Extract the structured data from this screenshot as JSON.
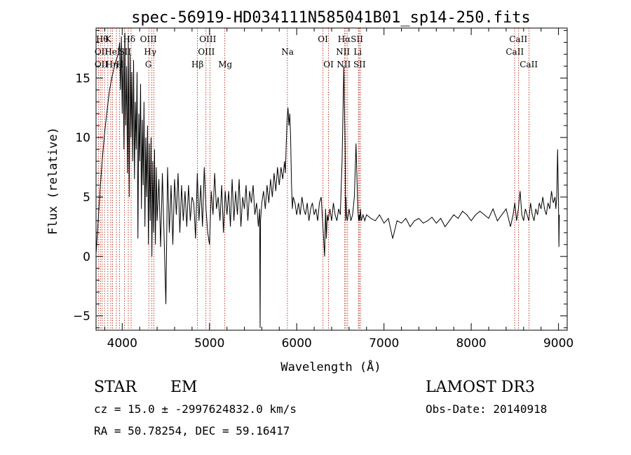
{
  "chart_data": {
    "type": "line",
    "title": "spec-56919-HD034111N585041B01_sp14-250.fits",
    "xlabel": "Wavelength (Å)",
    "ylabel": "Flux (relative)",
    "xlim": [
      3700,
      9100
    ],
    "ylim": [
      -6.2,
      19.2
    ],
    "xticks": [
      4000,
      5000,
      6000,
      7000,
      8000,
      9000
    ],
    "yticks": [
      -5,
      0,
      5,
      10,
      15
    ],
    "grid": false,
    "series": [
      {
        "x": [
          3700,
          3720,
          3745,
          3770,
          3800,
          3830,
          3855,
          3880,
          3905,
          3930,
          3955,
          3970,
          3980,
          3990,
          4000,
          4010,
          4020,
          4030,
          4040,
          4050,
          4060,
          4070,
          4080,
          4090,
          4100,
          4110,
          4120,
          4130,
          4140,
          4150,
          4160,
          4170,
          4180,
          4190,
          4200,
          4210,
          4220,
          4230,
          4240,
          4250,
          4260,
          4270,
          4280,
          4290,
          4300,
          4310,
          4320,
          4330,
          4340,
          4350,
          4360,
          4370,
          4380,
          4390,
          4400,
          4420,
          4440,
          4460,
          4480,
          4500,
          4520,
          4540,
          4560,
          4580,
          4600,
          4620,
          4640,
          4660,
          4680,
          4700,
          4720,
          4740,
          4760,
          4780,
          4800,
          4820,
          4840,
          4860,
          4880,
          4900,
          4920,
          4940,
          4960,
          4980,
          5000,
          5020,
          5040,
          5060,
          5080,
          5100,
          5120,
          5140,
          5160,
          5180,
          5200,
          5220,
          5240,
          5260,
          5280,
          5300,
          5320,
          5340,
          5360,
          5380,
          5400,
          5420,
          5440,
          5460,
          5480,
          5500,
          5520,
          5540,
          5560,
          5575,
          5580,
          5585,
          5600,
          5620,
          5640,
          5660,
          5680,
          5700,
          5720,
          5740,
          5760,
          5780,
          5800,
          5820,
          5840,
          5860,
          5870,
          5880,
          5890,
          5900,
          5910,
          5920,
          5930,
          5940,
          5950,
          5960,
          5980,
          6000,
          6020,
          6040,
          6060,
          6080,
          6100,
          6120,
          6140,
          6160,
          6180,
          6200,
          6220,
          6240,
          6260,
          6280,
          6300,
          6320,
          6330,
          6340,
          6350,
          6360,
          6380,
          6400,
          6420,
          6440,
          6460,
          6480,
          6500,
          6520,
          6540,
          6555,
          6560,
          6565,
          6570,
          6580,
          6600,
          6620,
          6640,
          6660,
          6680,
          6700,
          6710,
          6716,
          6722,
          6730,
          6740,
          6760,
          6780,
          6800,
          6850,
          6900,
          6950,
          7000,
          7050,
          7100,
          7150,
          7200,
          7250,
          7300,
          7350,
          7400,
          7450,
          7500,
          7550,
          7600,
          7650,
          7700,
          7750,
          7800,
          7850,
          7900,
          7950,
          8000,
          8050,
          8100,
          8150,
          8200,
          8250,
          8300,
          8350,
          8400,
          8450,
          8480,
          8500,
          8520,
          8540,
          8560,
          8580,
          8600,
          8620,
          8640,
          8660,
          8680,
          8700,
          8720,
          8740,
          8760,
          8780,
          8800,
          8820,
          8840,
          8860,
          8880,
          8900,
          8920,
          8940,
          8960,
          8970,
          8980,
          8990,
          9000,
          9005,
          9010
        ],
        "y": [
          0.2,
          2.5,
          5.5,
          8.0,
          10.5,
          12.5,
          14.0,
          15.0,
          15.8,
          16.5,
          17.0,
          18.0,
          14.0,
          18.5,
          12.0,
          17.5,
          9.0,
          18.8,
          11.0,
          16.0,
          7.0,
          18.5,
          5.0,
          17.0,
          10.0,
          15.5,
          8.0,
          16.5,
          6.5,
          13.0,
          9.0,
          15.5,
          1.5,
          12.0,
          8.0,
          14.5,
          4.0,
          11.5,
          6.0,
          13.0,
          2.5,
          10.0,
          5.0,
          11.0,
          1.0,
          9.5,
          3.0,
          10.0,
          0.0,
          8.0,
          2.0,
          9.0,
          1.0,
          7.5,
          3.0,
          6.5,
          0.8,
          7.0,
          1.5,
          -4.0,
          7.5,
          2.0,
          6.0,
          1.0,
          6.5,
          3.5,
          7.0,
          2.0,
          6.0,
          3.0,
          5.5,
          2.5,
          6.0,
          3.0,
          5.0,
          4.5,
          1.5,
          7.0,
          3.0,
          6.0,
          2.5,
          7.5,
          4.0,
          2.0,
          1.0,
          5.5,
          3.5,
          7.0,
          4.0,
          5.0,
          3.0,
          6.0,
          2.0,
          5.5,
          3.5,
          5.5,
          2.5,
          6.5,
          3.0,
          5.5,
          3.5,
          6.5,
          2.5,
          5.0,
          4.0,
          6.0,
          3.0,
          5.5,
          4.5,
          6.0,
          3.5,
          4.5,
          2.5,
          4.0,
          -6.0,
          3.0,
          4.5,
          5.5,
          4.0,
          6.0,
          4.5,
          6.5,
          5.0,
          7.0,
          5.5,
          7.5,
          6.0,
          7.5,
          6.5,
          8.0,
          7.0,
          9.5,
          11.5,
          12.5,
          11.0,
          12.0,
          10.0,
          6.0,
          4.0,
          5.0,
          4.5,
          3.5,
          4.5,
          3.5,
          5.0,
          4.0,
          3.5,
          4.5,
          3.0,
          4.0,
          4.5,
          3.5,
          4.0,
          3.0,
          4.5,
          5.0,
          2.5,
          0.0,
          4.0,
          1.5,
          3.5,
          3.0,
          4.0,
          3.0,
          4.5,
          3.5,
          3.0,
          4.0,
          3.5,
          8.0,
          16.0,
          9.0,
          3.0,
          5.0,
          3.5,
          3.0,
          4.0,
          3.0,
          3.5,
          5.0,
          9.5,
          4.0,
          3.0,
          3.5,
          3.0,
          4.0,
          3.0,
          3.5,
          3.0,
          3.5,
          3.2,
          3.0,
          3.5,
          2.8,
          3.2,
          1.5,
          3.0,
          2.8,
          3.2,
          2.5,
          3.0,
          3.2,
          2.8,
          3.0,
          3.3,
          2.8,
          3.2,
          2.5,
          3.0,
          3.5,
          3.2,
          3.8,
          3.5,
          3.0,
          3.5,
          3.8,
          3.5,
          3.2,
          4.0,
          3.0,
          3.5,
          4.0,
          2.5,
          3.5,
          4.5,
          3.0,
          4.0,
          5.5,
          3.5,
          3.0,
          4.0,
          3.5,
          3.0,
          4.5,
          3.5,
          3.0,
          4.0,
          3.5,
          4.5,
          4.0,
          5.0,
          4.0,
          3.5,
          4.5,
          4.0,
          5.5,
          4.5,
          5.0,
          4.0,
          5.0,
          9.0,
          4.5,
          0.8,
          3.5
        ]
      }
    ],
    "line_markers": [
      {
        "wl": 3727,
        "label": "OII"
      },
      {
        "wl": 3750,
        "label": "OII"
      },
      {
        "wl": 3770,
        "label": "Hθ"
      },
      {
        "wl": 3798,
        "label": "Hη"
      },
      {
        "wl": 3835,
        "label": "K"
      },
      {
        "wl": 3869,
        "label": "Hη"
      },
      {
        "wl": 3889,
        "label": "HeI"
      },
      {
        "wl": 3934,
        "label": "K"
      },
      {
        "wl": 3968,
        "label": "H"
      },
      {
        "wl": 4026,
        "label": "SII"
      },
      {
        "wl": 4070,
        "label": "Hδ"
      },
      {
        "wl": 4102,
        "label": "Hδ"
      },
      {
        "wl": 4305,
        "label": "G"
      },
      {
        "wl": 4340,
        "label": "Hγ"
      },
      {
        "wl": 4363,
        "label": "OIII"
      },
      {
        "wl": 4861,
        "label": "Hβ"
      },
      {
        "wl": 4959,
        "label": "OIII"
      },
      {
        "wl": 5007,
        "label": "OIII"
      },
      {
        "wl": 5175,
        "label": "Mg"
      },
      {
        "wl": 5893,
        "label": "Na"
      },
      {
        "wl": 6300,
        "label": "OI"
      },
      {
        "wl": 6364,
        "label": "OI"
      },
      {
        "wl": 6548,
        "label": "NII"
      },
      {
        "wl": 6563,
        "label": "Hα"
      },
      {
        "wl": 6583,
        "label": "NII"
      },
      {
        "wl": 6708,
        "label": "Li"
      },
      {
        "wl": 6716,
        "label": "SII"
      },
      {
        "wl": 6731,
        "label": "SII"
      },
      {
        "wl": 8498,
        "label": "CaII"
      },
      {
        "wl": 8542,
        "label": "CaII"
      },
      {
        "wl": 8662,
        "label": "CaII"
      }
    ],
    "line_labels": [
      {
        "text": "Hθ",
        "wl": 3770,
        "row": 0
      },
      {
        "text": "K",
        "wl": 3838,
        "row": 0
      },
      {
        "text": "Hδ",
        "wl": 4080,
        "row": 0
      },
      {
        "text": "OIII",
        "wl": 4300,
        "row": 0
      },
      {
        "text": "OIII",
        "wl": 4980,
        "row": 0
      },
      {
        "text": "OI",
        "wl": 6300,
        "row": 0
      },
      {
        "text": "Hα",
        "wl": 6545,
        "row": 0
      },
      {
        "text": "SII",
        "wl": 6690,
        "row": 0
      },
      {
        "text": "CaII",
        "wl": 8540,
        "row": 0
      },
      {
        "text": "OII",
        "wl": 3760,
        "row": 1
      },
      {
        "text": "HeI",
        "wl": 3888,
        "row": 1
      },
      {
        "text": "SII",
        "wl": 4032,
        "row": 1
      },
      {
        "text": "Hγ",
        "wl": 4320,
        "row": 1
      },
      {
        "text": "OIII",
        "wl": 4965,
        "row": 1
      },
      {
        "text": "Na",
        "wl": 5895,
        "row": 1
      },
      {
        "text": "NII",
        "wl": 6530,
        "row": 1
      },
      {
        "text": "Li",
        "wl": 6700,
        "row": 1
      },
      {
        "text": "CaII",
        "wl": 8500,
        "row": 1
      },
      {
        "text": "OII",
        "wl": 3760,
        "row": 2
      },
      {
        "text": "Hη",
        "wl": 3880,
        "row": 2
      },
      {
        "text": "H",
        "wl": 3972,
        "row": 2
      },
      {
        "text": "G",
        "wl": 4300,
        "row": 2
      },
      {
        "text": "Hβ",
        "wl": 4863,
        "row": 2
      },
      {
        "text": "Mg",
        "wl": 5180,
        "row": 2
      },
      {
        "text": "OI",
        "wl": 6365,
        "row": 2
      },
      {
        "text": "NII",
        "wl": 6540,
        "row": 2
      },
      {
        "text": "SII",
        "wl": 6720,
        "row": 2
      },
      {
        "text": "CaII",
        "wl": 8660,
        "row": 2
      }
    ]
  },
  "footer": {
    "class": "STAR",
    "subclass": "EM",
    "survey": "LAMOST DR3",
    "cz": "cz = 15.0 ± -2997624832.0 km/s",
    "obsdate": "Obs-Date: 20140918",
    "radec": "RA =  50.78254, DEC =  59.16417"
  }
}
